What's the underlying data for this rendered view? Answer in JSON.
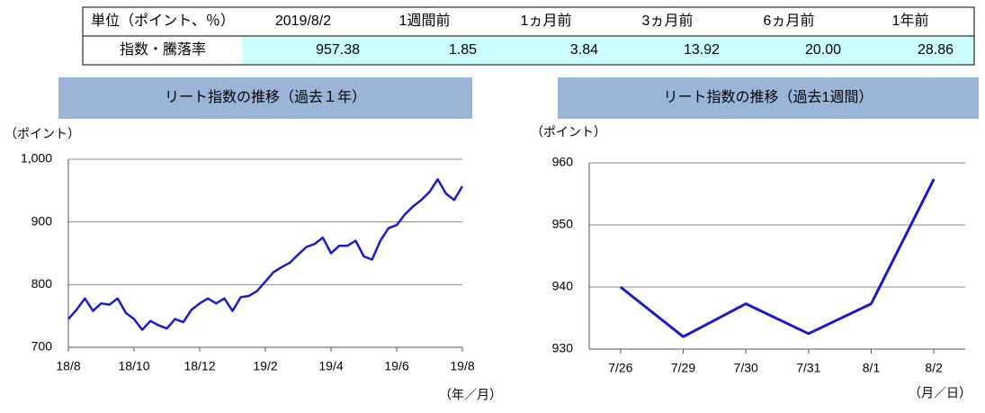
{
  "table": {
    "header": [
      "単位（ポイント、％）",
      "2019/8/2",
      "1週間前",
      "1ヵ月前",
      "3ヵ月前",
      "6ヵ月前",
      "1年前"
    ],
    "rows": [
      [
        "指数・騰落率",
        "957.38",
        "1.85",
        "3.84",
        "13.92",
        "20.00",
        "28.86"
      ]
    ]
  },
  "chart_data": [
    {
      "type": "line",
      "title": "リート指数の推移（過去１年）",
      "y_label": "（ポイント）",
      "x_label": "（年／月）",
      "categories": [
        "18/8",
        null,
        null,
        null,
        null,
        null,
        null,
        null,
        "18/10",
        null,
        null,
        null,
        null,
        null,
        null,
        null,
        "18/12",
        null,
        null,
        null,
        null,
        null,
        null,
        null,
        "19/2",
        null,
        null,
        null,
        null,
        null,
        null,
        null,
        "19/4",
        null,
        null,
        null,
        null,
        null,
        null,
        null,
        "19/6",
        null,
        null,
        null,
        null,
        null,
        null,
        null,
        "19/8"
      ],
      "series": [
        {
          "color": "#1a1acc",
          "values": [
            745,
            760,
            778,
            758,
            770,
            768,
            778,
            755,
            745,
            728,
            742,
            735,
            730,
            745,
            740,
            760,
            770,
            778,
            770,
            778,
            758,
            780,
            782,
            790,
            805,
            820,
            828,
            835,
            848,
            860,
            865,
            875,
            850,
            862,
            862,
            870,
            845,
            840,
            870,
            890,
            895,
            912,
            925,
            935,
            948,
            968,
            945,
            935,
            957
          ]
        }
      ],
      "ylim": [
        700,
        1000
      ],
      "yticks": [
        700,
        800,
        900,
        {
          "value": 1000,
          "label": "1,000"
        }
      ],
      "grid": true
    },
    {
      "type": "line",
      "title": "リート指数の推移（過去1週間）",
      "y_label": "（ポイント）",
      "x_label": "（月／日）",
      "categories": [
        "7/26",
        "7/29",
        "7/30",
        "7/31",
        "8/1",
        "8/2"
      ],
      "series": [
        {
          "color": "#1a1acc",
          "values": [
            940,
            932,
            937.3,
            932.5,
            937.3,
            957.38
          ]
        }
      ],
      "ylim": [
        930,
        960
      ],
      "yticks": [
        930,
        940,
        950,
        960
      ],
      "grid": true
    }
  ]
}
